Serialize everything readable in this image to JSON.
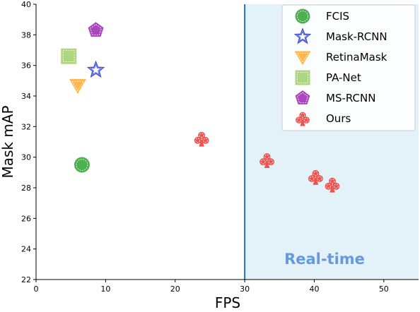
{
  "chart_data": {
    "type": "scatter",
    "title": "",
    "xlabel": "FPS",
    "ylabel": "Mask mAP",
    "xlim": [
      0,
      55
    ],
    "ylim": [
      22,
      40
    ],
    "xticks": [
      0,
      10,
      20,
      30,
      40,
      50
    ],
    "yticks": [
      22,
      24,
      26,
      28,
      30,
      32,
      34,
      36,
      38,
      40
    ],
    "grid": false,
    "legend_position": "top-right",
    "series": [
      {
        "name": "FCIS",
        "marker": "circle",
        "color": "#4caf50",
        "points": [
          {
            "x": 6.6,
            "y": 29.5
          }
        ]
      },
      {
        "name": "Mask-RCNN",
        "marker": "star",
        "color": "#3f51d8",
        "points": [
          {
            "x": 8.6,
            "y": 35.7
          }
        ]
      },
      {
        "name": "RetinaMask",
        "marker": "triangle-down",
        "color": "#ffb74d",
        "points": [
          {
            "x": 6.0,
            "y": 34.7
          }
        ]
      },
      {
        "name": "PA-Net",
        "marker": "square",
        "color": "#aed581",
        "points": [
          {
            "x": 4.7,
            "y": 36.6
          }
        ]
      },
      {
        "name": "MS-RCNN",
        "marker": "pentagon",
        "color": "#ab47bc",
        "points": [
          {
            "x": 8.6,
            "y": 38.3
          }
        ]
      },
      {
        "name": "Ours",
        "marker": "club",
        "color": "#ef5350",
        "points": [
          {
            "x": 23.8,
            "y": 31.2
          },
          {
            "x": 33.2,
            "y": 29.8
          },
          {
            "x": 40.2,
            "y": 28.7
          },
          {
            "x": 42.6,
            "y": 28.2
          }
        ]
      }
    ],
    "realtime_region": {
      "x_start": 30,
      "label": "Real-time",
      "fill": "#e3f1f8",
      "line_color": "#1f77b4",
      "label_color": "#6699e0"
    }
  }
}
